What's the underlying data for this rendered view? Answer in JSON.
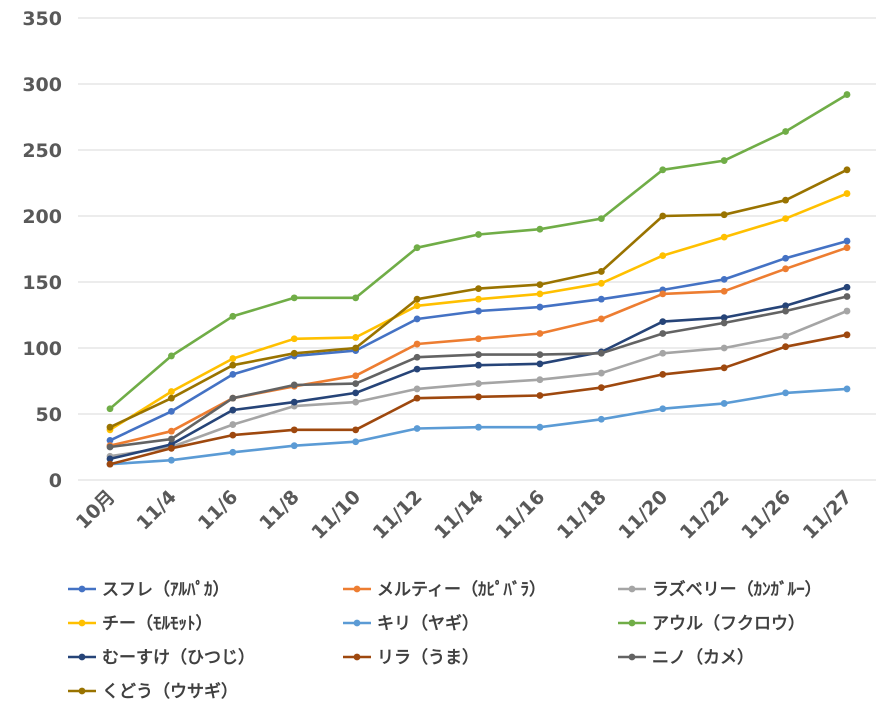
{
  "chart_data": {
    "type": "line",
    "title": "",
    "xlabel": "",
    "ylabel": "",
    "categories": [
      "10月",
      "11/4",
      "11/6",
      "11/8",
      "11/10",
      "11/12",
      "11/14",
      "11/16",
      "11/18",
      "11/20",
      "11/22",
      "11/26",
      "11/27"
    ],
    "yticks": [
      "0",
      "50",
      "100",
      "150",
      "200",
      "250",
      "300",
      "350"
    ],
    "ylim": [
      0,
      350
    ],
    "grid": true,
    "legend_position": "bottom",
    "series": [
      {
        "name": "スフレ（ｱﾙﾊﾟｶ）",
        "color": "#4472C4",
        "values": [
          30,
          52,
          80,
          94,
          98,
          122,
          128,
          131,
          137,
          144,
          152,
          168,
          181
        ]
      },
      {
        "name": "メルティー（ｶﾋﾟﾊﾞﾗ）",
        "color": "#ED7D31",
        "values": [
          26,
          37,
          62,
          71,
          79,
          103,
          107,
          111,
          122,
          141,
          143,
          160,
          176
        ]
      },
      {
        "name": "ラズベリー（ｶﾝｶﾞﾙｰ）",
        "color": "#A5A5A5",
        "values": [
          18,
          25,
          42,
          56,
          59,
          69,
          73,
          76,
          81,
          96,
          100,
          109,
          128
        ]
      },
      {
        "name": "チー（ﾓﾙﾓｯﾄ）",
        "color": "#FFC000",
        "values": [
          38,
          67,
          92,
          107,
          108,
          132,
          137,
          141,
          149,
          170,
          184,
          198,
          217
        ]
      },
      {
        "name": "キリ（ヤギ）",
        "color": "#5B9BD5",
        "values": [
          12,
          15,
          21,
          26,
          29,
          39,
          40,
          40,
          46,
          54,
          58,
          66,
          69
        ]
      },
      {
        "name": "アウル（フクロウ）",
        "color": "#70AD47",
        "values": [
          54,
          94,
          124,
          138,
          138,
          176,
          186,
          190,
          198,
          235,
          242,
          264,
          292
        ]
      },
      {
        "name": "むーすけ（ひつじ）",
        "color": "#264478",
        "values": [
          16,
          27,
          53,
          59,
          66,
          84,
          87,
          88,
          97,
          120,
          123,
          132,
          146
        ]
      },
      {
        "name": "リラ（うま）",
        "color": "#9E480E",
        "values": [
          12,
          24,
          34,
          38,
          38,
          62,
          63,
          64,
          70,
          80,
          85,
          101,
          110
        ]
      },
      {
        "name": "ニノ（カメ）",
        "color": "#636363",
        "values": [
          25,
          31,
          62,
          72,
          73,
          93,
          95,
          95,
          96,
          111,
          119,
          128,
          139
        ]
      },
      {
        "name": "くどう（ウサギ）",
        "color": "#997300",
        "values": [
          40,
          62,
          87,
          96,
          100,
          137,
          145,
          148,
          158,
          200,
          201,
          212,
          235
        ]
      }
    ]
  }
}
